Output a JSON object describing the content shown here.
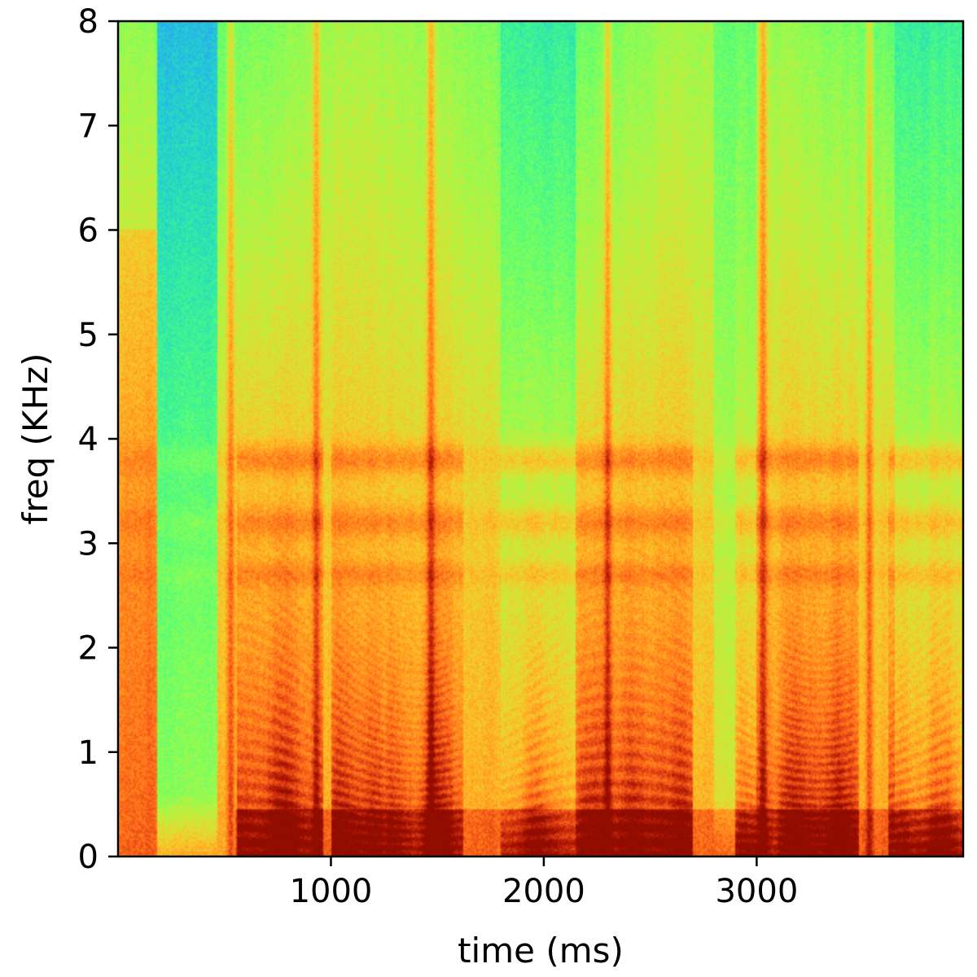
{
  "chart_data": {
    "type": "heatmap",
    "subtype": "spectrogram",
    "title": "",
    "xlabel": "time (ms)",
    "ylabel": "freq (KHz)",
    "xlim": [
      0,
      3970
    ],
    "ylim": [
      0,
      8
    ],
    "xticks": [
      1000,
      2000,
      3000
    ],
    "xtick_labels": [
      "1000",
      "2000",
      "3000"
    ],
    "yticks": [
      0,
      1,
      2,
      3,
      4,
      5,
      6,
      7,
      8
    ],
    "ytick_labels": [
      "0",
      "1",
      "2",
      "3",
      "4",
      "5",
      "6",
      "7",
      "8"
    ],
    "colormap": "turbo",
    "color_range": [
      0,
      1
    ],
    "grid": false,
    "legend": "none",
    "quiet_regions_ms": [
      [
        180,
        470
      ],
      [
        1800,
        2150
      ],
      [
        2800,
        3000
      ],
      [
        3650,
        3970
      ]
    ],
    "voiced_segments": [
      {
        "start_ms": 560,
        "end_ms": 960,
        "intensity": 0.92
      },
      {
        "start_ms": 1000,
        "end_ms": 1250,
        "intensity": 0.98
      },
      {
        "start_ms": 1250,
        "end_ms": 1400,
        "intensity": 0.8
      },
      {
        "start_ms": 1400,
        "end_ms": 1620,
        "intensity": 0.9
      },
      {
        "start_ms": 1800,
        "end_ms": 2150,
        "intensity": 0.7
      },
      {
        "start_ms": 2150,
        "end_ms": 2480,
        "intensity": 0.9
      },
      {
        "start_ms": 2480,
        "end_ms": 2700,
        "intensity": 0.95
      },
      {
        "start_ms": 2900,
        "end_ms": 3100,
        "intensity": 0.75
      },
      {
        "start_ms": 3100,
        "end_ms": 3480,
        "intensity": 0.98
      },
      {
        "start_ms": 3620,
        "end_ms": 3970,
        "intensity": 0.85
      }
    ],
    "formant_bands_khz": [
      {
        "center": 3.8,
        "width": 0.15,
        "strength": 0.5
      },
      {
        "center": 3.2,
        "width": 0.15,
        "strength": 0.4
      },
      {
        "center": 2.7,
        "width": 0.12,
        "strength": 0.3
      }
    ],
    "transient_columns_ms": [
      530,
      930,
      1470,
      2300,
      3030,
      3530
    ]
  }
}
